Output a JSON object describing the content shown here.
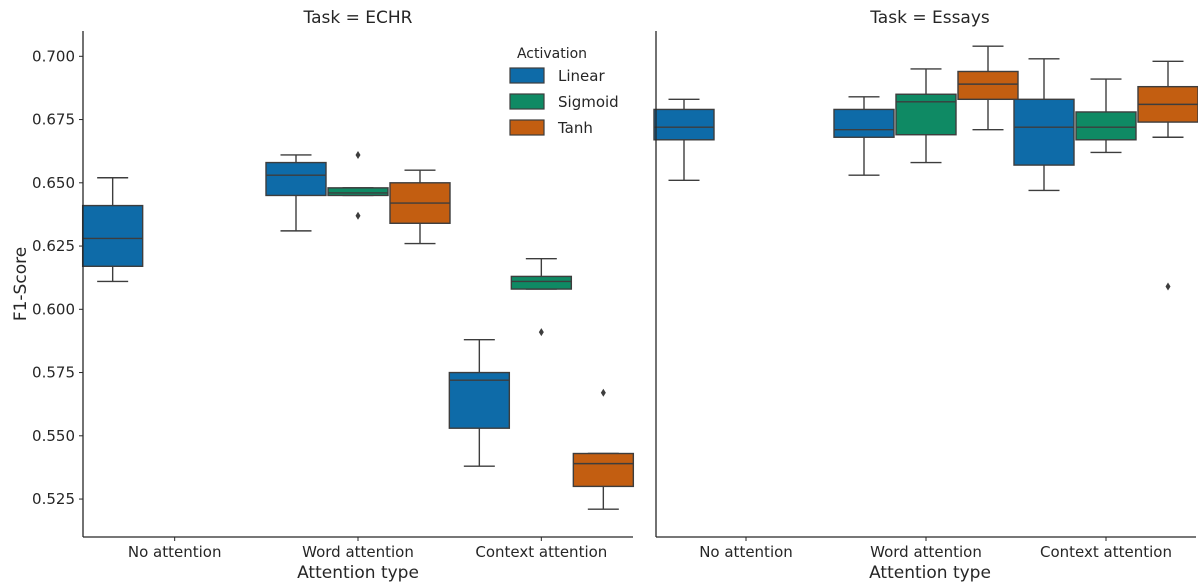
{
  "chart_data": [
    {
      "type": "box",
      "title": "Task = ECHR",
      "xlabel": "Attention type",
      "ylabel": "F1-Score",
      "ylim": [
        0.51,
        0.71
      ],
      "yticks": [
        "0.525",
        "0.550",
        "0.575",
        "0.600",
        "0.625",
        "0.650",
        "0.675",
        "0.700"
      ],
      "categories": [
        "No attention",
        "Word attention",
        "Context attention"
      ],
      "series": [
        {
          "name": "Linear",
          "boxes": [
            {
              "category": "No attention",
              "whislo": 0.611,
              "q1": 0.617,
              "med": 0.628,
              "q3": 0.641,
              "whishi": 0.652,
              "fliers": []
            },
            {
              "category": "Word attention",
              "whislo": 0.631,
              "q1": 0.645,
              "med": 0.653,
              "q3": 0.658,
              "whishi": 0.661,
              "fliers": []
            },
            {
              "category": "Context attention",
              "whislo": 0.538,
              "q1": 0.553,
              "med": 0.572,
              "q3": 0.575,
              "whishi": 0.588,
              "fliers": []
            }
          ]
        },
        {
          "name": "Sigmoid",
          "boxes": [
            {
              "category": "Word attention",
              "whislo": 0.645,
              "q1": 0.645,
              "med": 0.646,
              "q3": 0.648,
              "whishi": 0.648,
              "fliers": [
                0.637,
                0.661
              ]
            },
            {
              "category": "Context attention",
              "whislo": 0.608,
              "q1": 0.608,
              "med": 0.611,
              "q3": 0.613,
              "whishi": 0.62,
              "fliers": [
                0.591
              ]
            }
          ]
        },
        {
          "name": "Tanh",
          "boxes": [
            {
              "category": "Word attention",
              "whislo": 0.626,
              "q1": 0.634,
              "med": 0.642,
              "q3": 0.65,
              "whishi": 0.655,
              "fliers": []
            },
            {
              "category": "Context attention",
              "whislo": 0.521,
              "q1": 0.53,
              "med": 0.539,
              "q3": 0.543,
              "whishi": 0.543,
              "fliers": [
                0.567
              ]
            }
          ]
        }
      ]
    },
    {
      "type": "box",
      "title": "Task = Essays",
      "xlabel": "Attention type",
      "ylabel": "",
      "ylim": [
        0.51,
        0.71
      ],
      "categories": [
        "No attention",
        "Word attention",
        "Context attention"
      ],
      "series": [
        {
          "name": "Linear",
          "boxes": [
            {
              "category": "No attention",
              "whislo": 0.651,
              "q1": 0.667,
              "med": 0.672,
              "q3": 0.679,
              "whishi": 0.683,
              "fliers": []
            },
            {
              "category": "Word attention",
              "whislo": 0.653,
              "q1": 0.668,
              "med": 0.671,
              "q3": 0.679,
              "whishi": 0.684,
              "fliers": []
            },
            {
              "category": "Context attention",
              "whislo": 0.647,
              "q1": 0.657,
              "med": 0.672,
              "q3": 0.683,
              "whishi": 0.699,
              "fliers": []
            }
          ]
        },
        {
          "name": "Sigmoid",
          "boxes": [
            {
              "category": "Word attention",
              "whislo": 0.658,
              "q1": 0.669,
              "med": 0.682,
              "q3": 0.685,
              "whishi": 0.695,
              "fliers": []
            },
            {
              "category": "Context attention",
              "whislo": 0.662,
              "q1": 0.667,
              "med": 0.672,
              "q3": 0.678,
              "whishi": 0.691,
              "fliers": []
            }
          ]
        },
        {
          "name": "Tanh",
          "boxes": [
            {
              "category": "Word attention",
              "whislo": 0.671,
              "q1": 0.683,
              "med": 0.689,
              "q3": 0.694,
              "whishi": 0.704,
              "fliers": []
            },
            {
              "category": "Context attention",
              "whislo": 0.668,
              "q1": 0.674,
              "med": 0.681,
              "q3": 0.688,
              "whishi": 0.698,
              "fliers": [
                0.609
              ]
            }
          ]
        }
      ]
    }
  ],
  "legend": {
    "title": "Activation",
    "placement": "top-right of first panel",
    "entries": [
      "Linear",
      "Sigmoid",
      "Tanh"
    ]
  },
  "colors": {
    "Linear": "#0e6ba8",
    "Sigmoid": "#0f8a64",
    "Tanh": "#c35e11",
    "line": "#3d3d3d",
    "axis": "#262626"
  },
  "grid": false
}
